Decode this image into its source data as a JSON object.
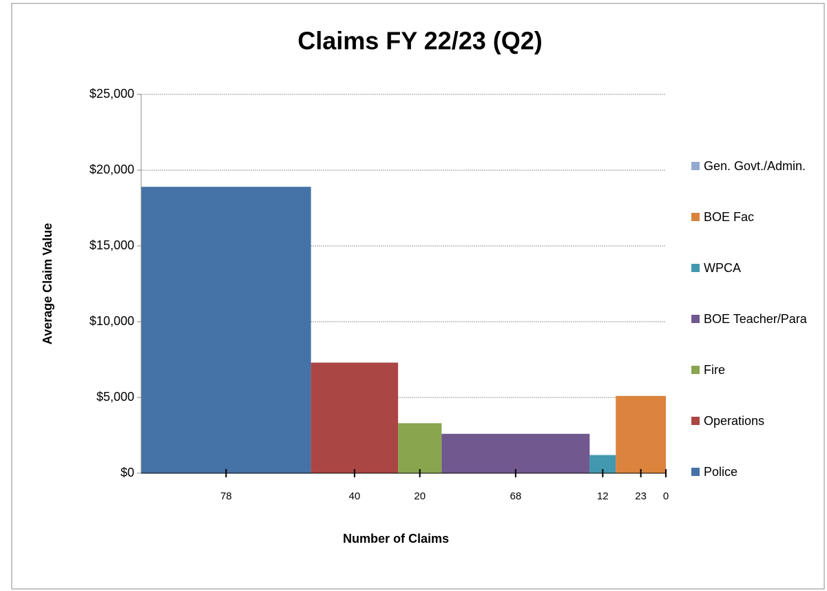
{
  "chart_data": {
    "type": "bar",
    "title": "Claims FY 22/23 (Q2)",
    "x_label": "Number of Claims",
    "y_label": "Average Claim Value",
    "categories": [
      "Police",
      "Operations",
      "Fire",
      "BOE Teacher/Para",
      "WPCA",
      "BOE Fac",
      "Gen. Govt./Admin."
    ],
    "counts": [
      78,
      40,
      20,
      68,
      12,
      23,
      0
    ],
    "values": [
      18900,
      7300,
      3300,
      2600,
      1200,
      5100,
      null
    ],
    "colors": [
      "#4572a7",
      "#aa4643",
      "#89a54e",
      "#71588f",
      "#4198af",
      "#db843d",
      "#93a9cf"
    ],
    "ylim": [
      0,
      25000
    ],
    "yticks": [
      {
        "value": 0,
        "label": "$0"
      },
      {
        "value": 5000,
        "label": "$5,000"
      },
      {
        "value": 10000,
        "label": "$10,000"
      },
      {
        "value": 15000,
        "label": "$15,000"
      },
      {
        "value": 20000,
        "label": "$20,000"
      },
      {
        "value": 25000,
        "label": "$25,000"
      }
    ],
    "grid": true,
    "legend": "right",
    "legend_order": "reversed"
  }
}
